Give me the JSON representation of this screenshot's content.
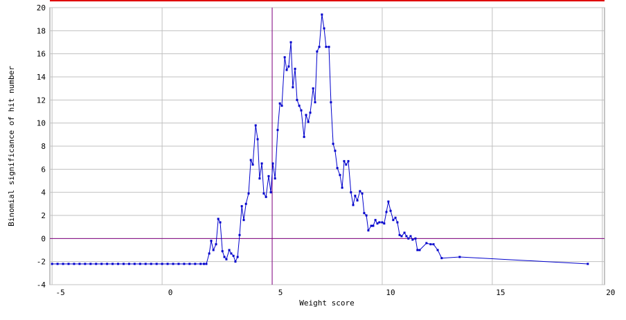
{
  "chart_data": {
    "type": "line",
    "x_label": "Weight score",
    "y_label": "Binomial significance of hit number",
    "xlim": [
      -5.1,
      20.1
    ],
    "ylim": [
      -4,
      20
    ],
    "xticks": [
      -5,
      0,
      5,
      10,
      15,
      20
    ],
    "yticks": [
      -4,
      -2,
      0,
      2,
      4,
      6,
      8,
      10,
      12,
      14,
      16,
      18,
      20
    ],
    "grid": true,
    "vline": 5,
    "hline": 0,
    "ref_color": "#800080",
    "series": [
      {
        "color": "#0000cc",
        "x": [
          -5,
          -4.75,
          -4.5,
          -4.25,
          -4,
          -3.75,
          -3.5,
          -3.25,
          -3,
          -2.75,
          -2.5,
          -2.25,
          -2,
          -1.75,
          -1.5,
          -1.25,
          -1,
          -0.75,
          -0.5,
          -0.25,
          0,
          0.25,
          0.5,
          0.75,
          1,
          1.25,
          1.5,
          1.75,
          1.9,
          2.01,
          2.14,
          2.23,
          2.33,
          2.45,
          2.55,
          2.64,
          2.74,
          2.83,
          2.92,
          3.05,
          3.14,
          3.24,
          3.33,
          3.43,
          3.52,
          3.62,
          3.71,
          3.81,
          3.93,
          4.03,
          4.12,
          4.25,
          4.34,
          4.43,
          4.53,
          4.62,
          4.72,
          4.84,
          4.94,
          5.03,
          5.13,
          5.25,
          5.35,
          5.44,
          5.57,
          5.66,
          5.75,
          5.85,
          5.94,
          6.04,
          6.13,
          6.23,
          6.32,
          6.45,
          6.54,
          6.64,
          6.73,
          6.86,
          6.95,
          7.04,
          7.14,
          7.26,
          7.36,
          7.45,
          7.58,
          7.67,
          7.77,
          7.86,
          7.96,
          8.08,
          8.18,
          8.27,
          8.36,
          8.46,
          8.58,
          8.68,
          8.77,
          8.87,
          8.99,
          9.09,
          9.18,
          9.28,
          9.37,
          9.5,
          9.59,
          9.69,
          9.78,
          9.87,
          10,
          10.09,
          10.19,
          10.28,
          10.38,
          10.5,
          10.6,
          10.69,
          10.79,
          10.88,
          11.01,
          11.1,
          11.19,
          11.29,
          11.38,
          11.51,
          11.6,
          11.7,
          12.01,
          12.2,
          12.33,
          12.52,
          12.7,
          13.52,
          19.34
        ],
        "values": [
          -2.2,
          -2.2,
          -2.2,
          -2.2,
          -2.2,
          -2.2,
          -2.2,
          -2.2,
          -2.2,
          -2.2,
          -2.2,
          -2.2,
          -2.2,
          -2.2,
          -2.2,
          -2.2,
          -2.2,
          -2.2,
          -2.2,
          -2.2,
          -2.2,
          -2.2,
          -2.2,
          -2.2,
          -2.2,
          -2.2,
          -2.2,
          -2.2,
          -2.2,
          -2.2,
          -1.3,
          -0.2,
          -1.0,
          -0.5,
          1.7,
          1.4,
          -1.1,
          -1.6,
          -1.8,
          -1.0,
          -1.3,
          -1.5,
          -2.0,
          -1.6,
          0.3,
          2.8,
          1.6,
          3.0,
          3.9,
          6.8,
          6.4,
          9.8,
          8.6,
          5.2,
          6.5,
          3.9,
          3.6,
          5.4,
          4.0,
          6.5,
          5.2,
          9.4,
          11.7,
          11.5,
          15.7,
          14.6,
          14.9,
          17.0,
          13.1,
          14.7,
          12.0,
          11.5,
          11.1,
          8.8,
          10.7,
          10.1,
          10.9,
          13.0,
          11.8,
          16.2,
          16.6,
          19.4,
          18.2,
          16.6,
          16.6,
          11.8,
          8.2,
          7.6,
          6.1,
          5.5,
          4.4,
          6.7,
          6.4,
          6.7,
          4.0,
          2.9,
          3.7,
          3.3,
          4.1,
          3.9,
          2.2,
          2.0,
          0.7,
          1.1,
          1.1,
          1.6,
          1.3,
          1.4,
          1.4,
          1.3,
          2.3,
          3.2,
          2.4,
          1.6,
          1.8,
          1.4,
          0.3,
          0.2,
          0.5,
          0.2,
          0.0,
          0.2,
          -0.1,
          0.0,
          -1.0,
          -1.0,
          -0.4,
          -0.5,
          -0.5,
          -1.0,
          -1.7,
          -1.6,
          -2.2
        ]
      }
    ]
  }
}
